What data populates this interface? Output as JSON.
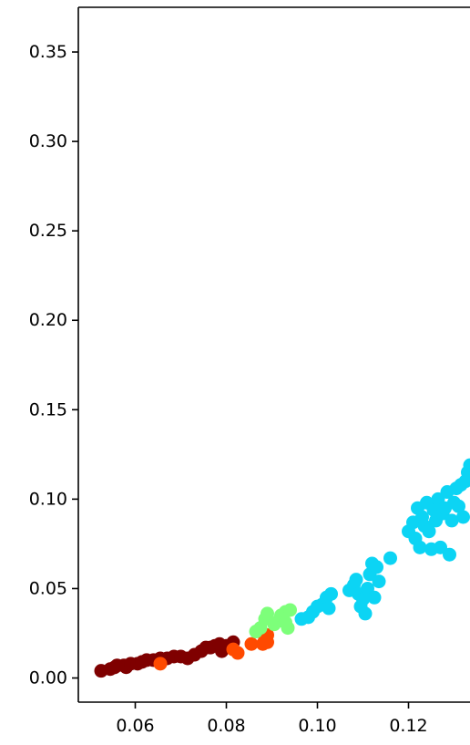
{
  "chart_data": {
    "type": "scatter",
    "title": "",
    "xlabel": "",
    "ylabel": "",
    "xlim": [
      0.0475,
      0.1335
    ],
    "ylim": [
      -0.0135,
      0.375
    ],
    "x_ticks": [
      0.06,
      0.08,
      0.1,
      0.12
    ],
    "x_tick_labels": [
      "0.06",
      "0.08",
      "0.10",
      "0.12"
    ],
    "y_ticks": [
      0.0,
      0.05,
      0.1,
      0.15,
      0.2,
      0.25,
      0.3,
      0.35
    ],
    "y_tick_labels": [
      "0.00",
      "0.05",
      "0.10",
      "0.15",
      "0.20",
      "0.25",
      "0.30",
      "0.35"
    ],
    "grid": false,
    "series": [
      {
        "color": "#7f0000",
        "points": [
          [
            0.0525,
            0.004
          ],
          [
            0.0545,
            0.005
          ],
          [
            0.0555,
            0.006
          ],
          [
            0.056,
            0.007
          ],
          [
            0.0575,
            0.007
          ],
          [
            0.058,
            0.006
          ],
          [
            0.059,
            0.008
          ],
          [
            0.0605,
            0.008
          ],
          [
            0.0615,
            0.009
          ],
          [
            0.0625,
            0.01
          ],
          [
            0.064,
            0.01
          ],
          [
            0.0655,
            0.011
          ],
          [
            0.067,
            0.011
          ],
          [
            0.0685,
            0.012
          ],
          [
            0.07,
            0.012
          ],
          [
            0.0715,
            0.011
          ],
          [
            0.073,
            0.013
          ],
          [
            0.0745,
            0.015
          ],
          [
            0.0755,
            0.017
          ],
          [
            0.0765,
            0.017
          ],
          [
            0.0775,
            0.018
          ],
          [
            0.0785,
            0.019
          ],
          [
            0.079,
            0.015
          ],
          [
            0.08,
            0.018
          ],
          [
            0.0815,
            0.02
          ]
        ]
      },
      {
        "color": "#ff4a00",
        "points": [
          [
            0.0655,
            0.008
          ],
          [
            0.0825,
            0.014
          ],
          [
            0.0815,
            0.016
          ],
          [
            0.0855,
            0.019
          ],
          [
            0.088,
            0.019
          ],
          [
            0.089,
            0.02
          ],
          [
            0.089,
            0.024
          ],
          [
            0.0885,
            0.022
          ]
        ]
      },
      {
        "color": "#7dff7a",
        "points": [
          [
            0.0865,
            0.026
          ],
          [
            0.0875,
            0.028
          ],
          [
            0.0885,
            0.033
          ],
          [
            0.089,
            0.036
          ],
          [
            0.0905,
            0.03
          ],
          [
            0.0915,
            0.032
          ],
          [
            0.092,
            0.035
          ],
          [
            0.093,
            0.037
          ],
          [
            0.0935,
            0.028
          ],
          [
            0.094,
            0.038
          ],
          [
            0.093,
            0.031
          ]
        ]
      },
      {
        "color": "#0cd4f4",
        "points": [
          [
            0.0965,
            0.033
          ],
          [
            0.098,
            0.034
          ],
          [
            0.099,
            0.037
          ],
          [
            0.1,
            0.04
          ],
          [
            0.101,
            0.041
          ],
          [
            0.102,
            0.045
          ],
          [
            0.103,
            0.047
          ],
          [
            0.1025,
            0.039
          ],
          [
            0.107,
            0.049
          ],
          [
            0.108,
            0.052
          ],
          [
            0.1085,
            0.055
          ],
          [
            0.109,
            0.047
          ],
          [
            0.1095,
            0.04
          ],
          [
            0.11,
            0.044
          ],
          [
            0.1105,
            0.036
          ],
          [
            0.111,
            0.05
          ],
          [
            0.1115,
            0.058
          ],
          [
            0.112,
            0.064
          ],
          [
            0.1125,
            0.045
          ],
          [
            0.113,
            0.062
          ],
          [
            0.1135,
            0.054
          ],
          [
            0.116,
            0.067
          ],
          [
            0.12,
            0.082
          ],
          [
            0.121,
            0.087
          ],
          [
            0.1215,
            0.078
          ],
          [
            0.122,
            0.095
          ],
          [
            0.1225,
            0.073
          ],
          [
            0.123,
            0.09
          ],
          [
            0.1235,
            0.085
          ],
          [
            0.124,
            0.098
          ],
          [
            0.1245,
            0.082
          ],
          [
            0.125,
            0.072
          ],
          [
            0.1255,
            0.094
          ],
          [
            0.126,
            0.088
          ],
          [
            0.1265,
            0.1
          ],
          [
            0.127,
            0.073
          ],
          [
            0.1275,
            0.092
          ],
          [
            0.128,
            0.095
          ],
          [
            0.1285,
            0.104
          ],
          [
            0.129,
            0.069
          ],
          [
            0.1295,
            0.088
          ],
          [
            0.13,
            0.098
          ],
          [
            0.1305,
            0.106
          ],
          [
            0.131,
            0.096
          ],
          [
            0.1315,
            0.108
          ],
          [
            0.132,
            0.09
          ],
          [
            0.1325,
            0.11
          ],
          [
            0.133,
            0.115
          ],
          [
            0.1335,
            0.119
          ]
        ]
      }
    ]
  }
}
